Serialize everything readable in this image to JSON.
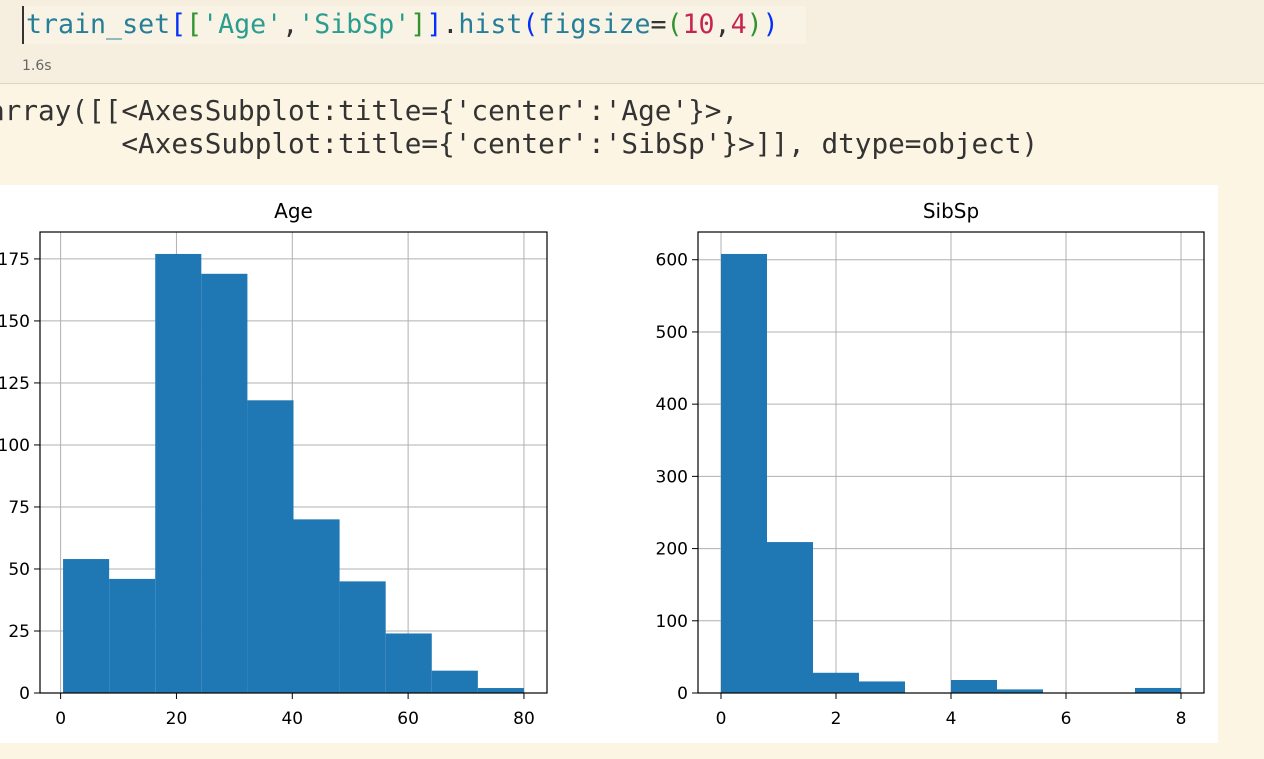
{
  "cell": {
    "code_tokens": [
      {
        "text": "train_set",
        "color": "#267f99"
      },
      {
        "text": "[",
        "color": "#0431fa"
      },
      {
        "text": "[",
        "color": "#319331"
      },
      {
        "text": "'Age'",
        "color": "#2a9d8f"
      },
      {
        "text": ",",
        "color": "#333333"
      },
      {
        "text": "'SibSp'",
        "color": "#2a9d8f"
      },
      {
        "text": "]",
        "color": "#319331"
      },
      {
        "text": "]",
        "color": "#0431fa"
      },
      {
        "text": ".",
        "color": "#333333"
      },
      {
        "text": "hist",
        "color": "#267f99"
      },
      {
        "text": "(",
        "color": "#0431fa"
      },
      {
        "text": "figsize",
        "color": "#267f99"
      },
      {
        "text": "=",
        "color": "#333333"
      },
      {
        "text": "(",
        "color": "#319331"
      },
      {
        "text": "10",
        "color": "#c7254e"
      },
      {
        "text": ",",
        "color": "#333333"
      },
      {
        "text": "4",
        "color": "#c7254e"
      },
      {
        "text": ")",
        "color": "#319331"
      },
      {
        "text": ")",
        "color": "#0431fa"
      }
    ],
    "time": "1.6s",
    "output": [
      "array([[<AxesSubplot:title={'center':'Age'}>,",
      "        <AxesSubplot:title={'center':'SibSp'}>]], dtype=object)"
    ]
  },
  "chart_data": [
    {
      "type": "histogram",
      "title": "Age",
      "color": "#1f77b4",
      "grid": true,
      "bins": [
        0.42,
        8.378,
        16.336,
        24.294,
        32.252,
        40.21,
        48.168,
        56.126,
        64.084,
        72.042,
        80
      ],
      "values": [
        54,
        46,
        177,
        169,
        118,
        70,
        45,
        24,
        9,
        2
      ],
      "xlim": [
        -3.56,
        83.98
      ],
      "xticks": [
        0,
        20,
        40,
        60,
        80
      ],
      "ylim": [
        0,
        185.85
      ],
      "yticks": [
        0,
        25,
        50,
        75,
        100,
        125,
        150,
        175
      ]
    },
    {
      "type": "histogram",
      "title": "SibSp",
      "color": "#1f77b4",
      "grid": true,
      "bins": [
        0,
        0.8,
        1.6,
        2.4,
        3.2,
        4.0,
        4.8,
        5.6,
        6.4,
        7.2,
        8
      ],
      "values": [
        608,
        209,
        28,
        16,
        0,
        18,
        5,
        0,
        0,
        7
      ],
      "xlim": [
        -0.4,
        8.4
      ],
      "xticks": [
        0,
        2,
        4,
        6,
        8
      ],
      "ylim": [
        0,
        638.4
      ],
      "yticks": [
        0,
        100,
        200,
        300,
        400,
        500,
        600
      ]
    }
  ]
}
